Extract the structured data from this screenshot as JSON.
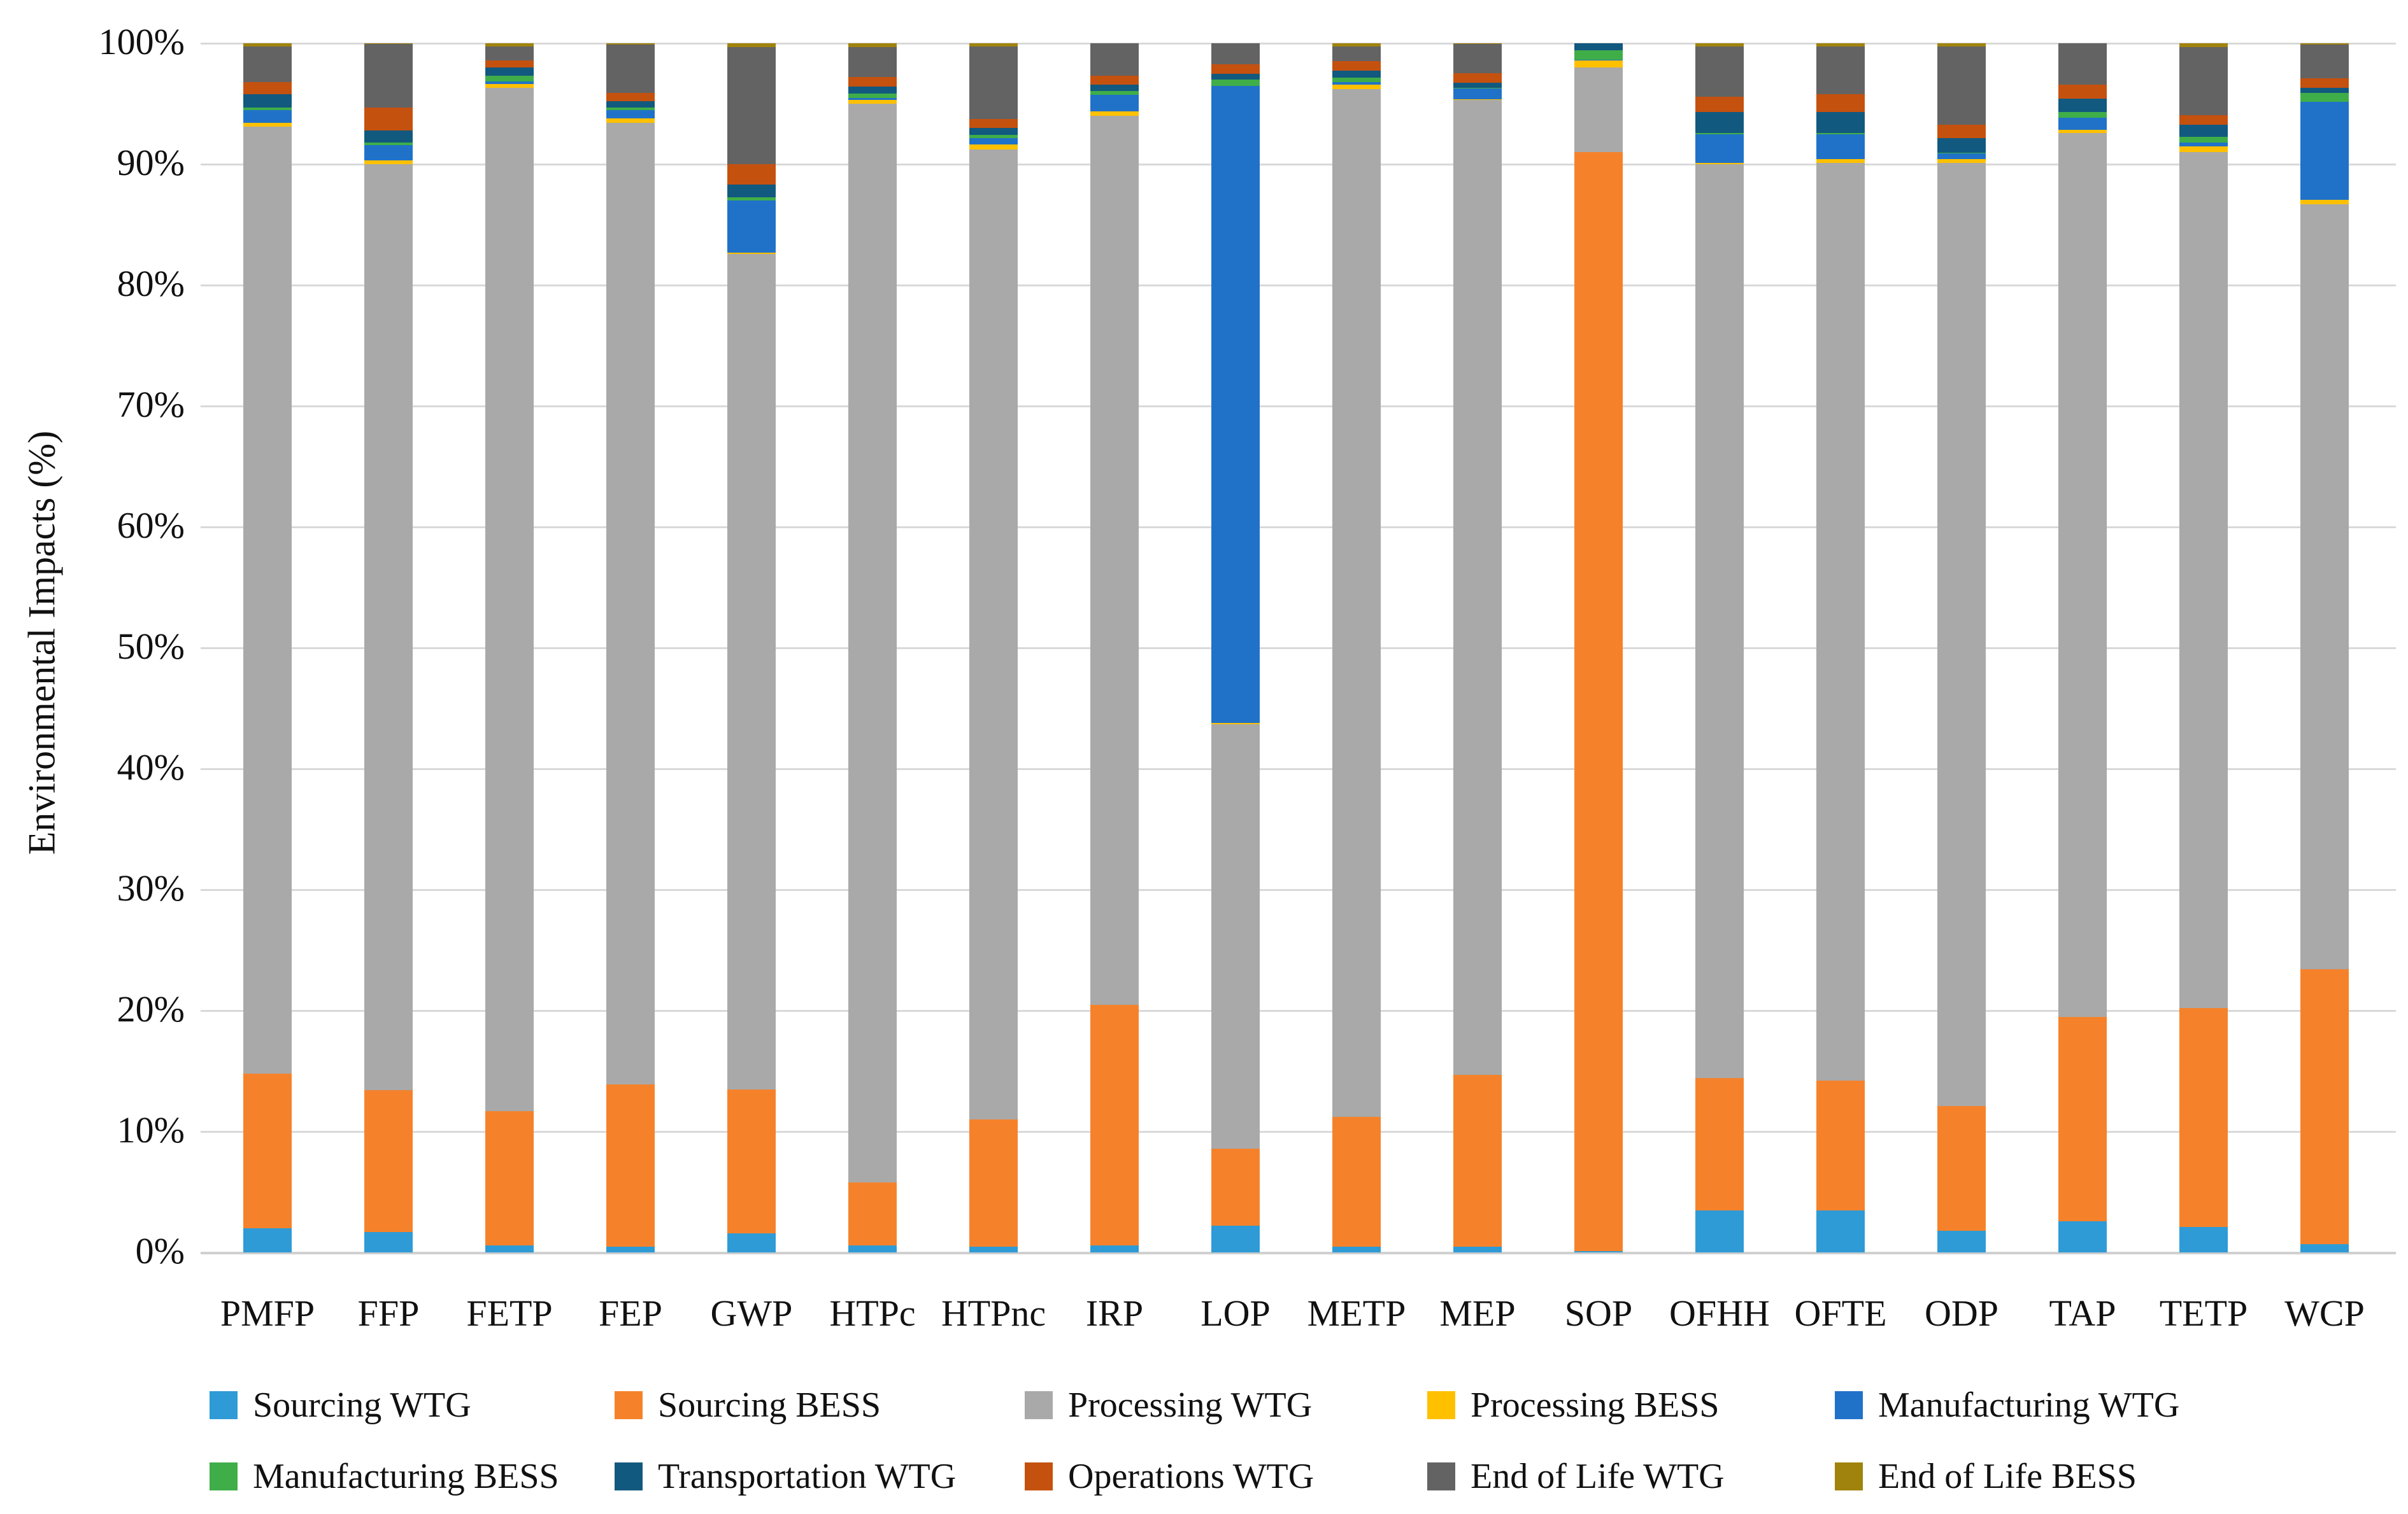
{
  "chart_data": {
    "type": "bar",
    "stacked": true,
    "orientation": "vertical",
    "title": "",
    "xlabel": "",
    "ylabel": "Environmental Impacts (%)",
    "ylim": [
      0,
      100
    ],
    "ytick_labels": [
      "0%",
      "10%",
      "20%",
      "30%",
      "40%",
      "50%",
      "60%",
      "70%",
      "80%",
      "90%",
      "100%"
    ],
    "grid": true,
    "legend_position": "bottom",
    "categories": [
      "PMFP",
      "FFP",
      "FETP",
      "FEP",
      "GWP",
      "HTPc",
      "HTPnc",
      "IRP",
      "LOP",
      "METP",
      "MEP",
      "SOP",
      "OFHH",
      "OFTE",
      "ODP",
      "TAP",
      "TETP",
      "WCP"
    ],
    "series": [
      {
        "name": "Sourcing WTG",
        "color": "#2E9BD6",
        "values": [
          2.0,
          1.7,
          0.6,
          0.5,
          1.6,
          0.6,
          0.5,
          0.6,
          2.2,
          0.5,
          0.5,
          0.1,
          3.5,
          3.5,
          1.8,
          2.6,
          2.1,
          0.7
        ]
      },
      {
        "name": "Sourcing BESS",
        "color": "#F5822B",
        "values": [
          12.8,
          11.7,
          11.1,
          13.4,
          11.9,
          5.2,
          10.5,
          19.9,
          6.4,
          10.7,
          14.2,
          90.9,
          10.9,
          10.7,
          10.3,
          16.9,
          18.1,
          22.7
        ]
      },
      {
        "name": "Processing WTG",
        "color": "#A9A9A9",
        "values": [
          78.3,
          76.6,
          84.6,
          79.5,
          69.1,
          89.2,
          80.2,
          73.5,
          35.1,
          85.0,
          80.6,
          7.0,
          75.6,
          75.9,
          78.0,
          73.1,
          70.8,
          63.3
        ]
      },
      {
        "name": "Processing BESS",
        "color": "#FFC000",
        "values": [
          0.3,
          0.3,
          0.35,
          0.4,
          0.1,
          0.3,
          0.45,
          0.35,
          0.1,
          0.4,
          0.05,
          0.6,
          0.1,
          0.3,
          0.3,
          0.25,
          0.45,
          0.35
        ]
      },
      {
        "name": "Manufacturing WTG",
        "color": "#2072C8",
        "values": [
          1.1,
          1.3,
          0.2,
          0.7,
          4.3,
          0.2,
          0.5,
          1.4,
          52.7,
          0.2,
          0.9,
          0.05,
          2.4,
          2.1,
          0.5,
          1.0,
          0.35,
          8.1
        ]
      },
      {
        "name": "Manufacturing BESS",
        "color": "#3FAE49",
        "values": [
          0.2,
          0.2,
          0.45,
          0.2,
          0.25,
          0.35,
          0.25,
          0.3,
          0.5,
          0.35,
          0.05,
          0.8,
          0.1,
          0.1,
          0.05,
          0.45,
          0.45,
          0.75
        ]
      },
      {
        "name": "Transportation WTG",
        "color": "#12597F",
        "values": [
          1.1,
          1.0,
          0.7,
          0.5,
          1.05,
          0.6,
          0.6,
          0.55,
          0.45,
          0.6,
          0.45,
          0.55,
          1.7,
          1.7,
          1.2,
          1.1,
          1.0,
          0.4
        ]
      },
      {
        "name": "Operations WTG",
        "color": "#C5510F",
        "values": [
          1.0,
          1.9,
          0.6,
          0.7,
          1.7,
          0.75,
          0.75,
          0.7,
          0.8,
          0.8,
          0.8,
          0.0,
          1.3,
          1.5,
          1.1,
          1.2,
          0.8,
          0.8
        ]
      },
      {
        "name": "End of Life WTG",
        "color": "#636363",
        "values": [
          2.95,
          5.25,
          1.15,
          4.0,
          9.7,
          2.5,
          6.0,
          2.7,
          1.75,
          1.2,
          2.4,
          0.0,
          4.15,
          3.95,
          6.5,
          3.4,
          5.65,
          2.8
        ]
      },
      {
        "name": "End of Life BESS",
        "color": "#A0830C",
        "values": [
          0.25,
          0.05,
          0.25,
          0.1,
          0.3,
          0.3,
          0.25,
          0.0,
          0.0,
          0.25,
          0.05,
          0.0,
          0.25,
          0.25,
          0.25,
          0.0,
          0.3,
          0.1
        ]
      }
    ]
  }
}
